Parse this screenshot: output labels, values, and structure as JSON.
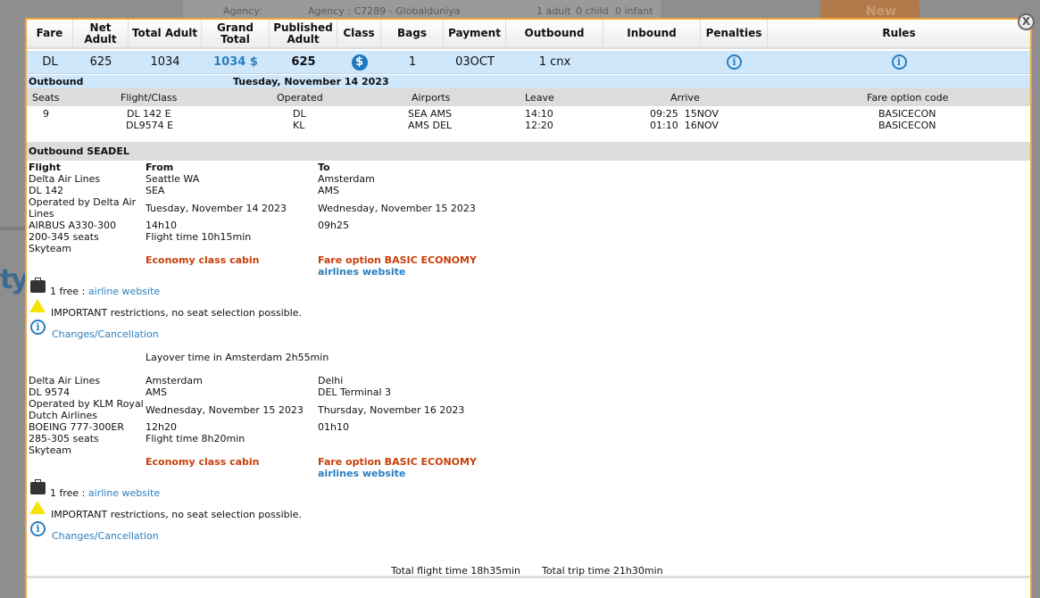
{
  "background": {
    "agency_label": "Agency:",
    "agency_value": "Agency : C7289 - Globalduniya",
    "adults": "1 adult",
    "children": "0 child",
    "infants": "0 infant",
    "new_button": "New",
    "logo_text": "ty"
  },
  "close_label": "X",
  "fare_table": {
    "headers": [
      "Fare",
      "Net Adult",
      "Total Adult",
      "Grand Total",
      "Published Adult",
      "Class",
      "Bags",
      "Payment",
      "Outbound",
      "Inbound",
      "Penalties",
      "Rules"
    ],
    "row": {
      "fare": "DL",
      "net_adult": "625",
      "total_adult": "1034",
      "grand_total": "1034 $",
      "published_adult": "625",
      "class_icon": "dollar-icon",
      "bags": "1",
      "payment": "03OCT",
      "outbound": "1 cnx",
      "inbound": "",
      "penalties_icon": "info-icon",
      "rules_icon": "info-icon"
    }
  },
  "outbound_summary": {
    "label": "Outbound",
    "date": "Tuesday, November 14 2023",
    "headers": [
      "Seats",
      "Flight/Class",
      "Operated",
      "Airports",
      "Leave",
      "Arrive",
      "Fare option code"
    ],
    "seats": "9",
    "rows": [
      {
        "flight": "DL 142 E",
        "operated": "DL",
        "airports": "SEA AMS",
        "leave": "14:10",
        "arrive": "09:25  15NOV",
        "fare_code": "BASICECON"
      },
      {
        "flight": "DL9574 E",
        "operated": "KL",
        "airports": "AMS DEL",
        "leave": "12:20",
        "arrive": "01:10  16NOV",
        "fare_code": "BASICECON"
      }
    ]
  },
  "details": {
    "section_title": "Outbound SEADEL",
    "col_flight": "Flight",
    "col_from": "From",
    "col_to": "To",
    "segments": [
      {
        "airline": "Delta Air Lines",
        "flight": "DL 142",
        "operated_by": "Operated by Delta Air",
        "operated_by2": "Lines",
        "aircraft": "AIRBUS A330-300",
        "seats": "200-345 seats",
        "alliance": "Skyteam",
        "from_city": "Seattle WA",
        "from_code": "SEA",
        "from_date": "Tuesday, November 14 2023",
        "from_time": "14h10",
        "flight_time": "Flight time 10h15min",
        "to_city": "Amsterdam",
        "to_code": "AMS",
        "to_date": "Wednesday, November 15 2023",
        "to_time": "09h25",
        "cabin": "Economy class cabin",
        "fare_option": "Fare option BASIC ECONOMY",
        "airlines_website": "airlines website",
        "bag_text": "1 free : ",
        "bag_link": "airline website",
        "warning": "IMPORTANT restrictions, no seat selection possible.",
        "changes": "Changes/Cancellation"
      },
      {
        "airline": "Delta Air Lines",
        "flight": "DL 9574",
        "operated_by": "Operated by KLM Royal",
        "operated_by2": "Dutch Airlines",
        "aircraft": "BOEING 777-300ER",
        "seats": "285-305 seats",
        "alliance": "Skyteam",
        "from_city": "Amsterdam",
        "from_code": "AMS",
        "from_date": "Wednesday, November 15 2023",
        "from_time": "12h20",
        "flight_time": "Flight time 8h20min",
        "to_city": "Delhi",
        "to_code": "DEL Terminal 3",
        "to_date": "Thursday, November 16 2023",
        "to_time": "01h10",
        "cabin": "Economy class cabin",
        "fare_option": "Fare option BASIC ECONOMY",
        "airlines_website": "airlines website",
        "bag_text": "1 free : ",
        "bag_link": "airline website",
        "warning": "IMPORTANT restrictions, no seat selection possible.",
        "changes": "Changes/Cancellation"
      }
    ],
    "layover": "Layover time in Amsterdam 2h55min",
    "total_flight_time": "Total flight time 18h35min",
    "total_trip_time": "Total trip time 21h30min"
  },
  "colors": {
    "accent_border": "#f2a33a",
    "row_highlight": "#cfe7fa",
    "link": "#2a7fc0",
    "fare_red": "#c8400a"
  }
}
